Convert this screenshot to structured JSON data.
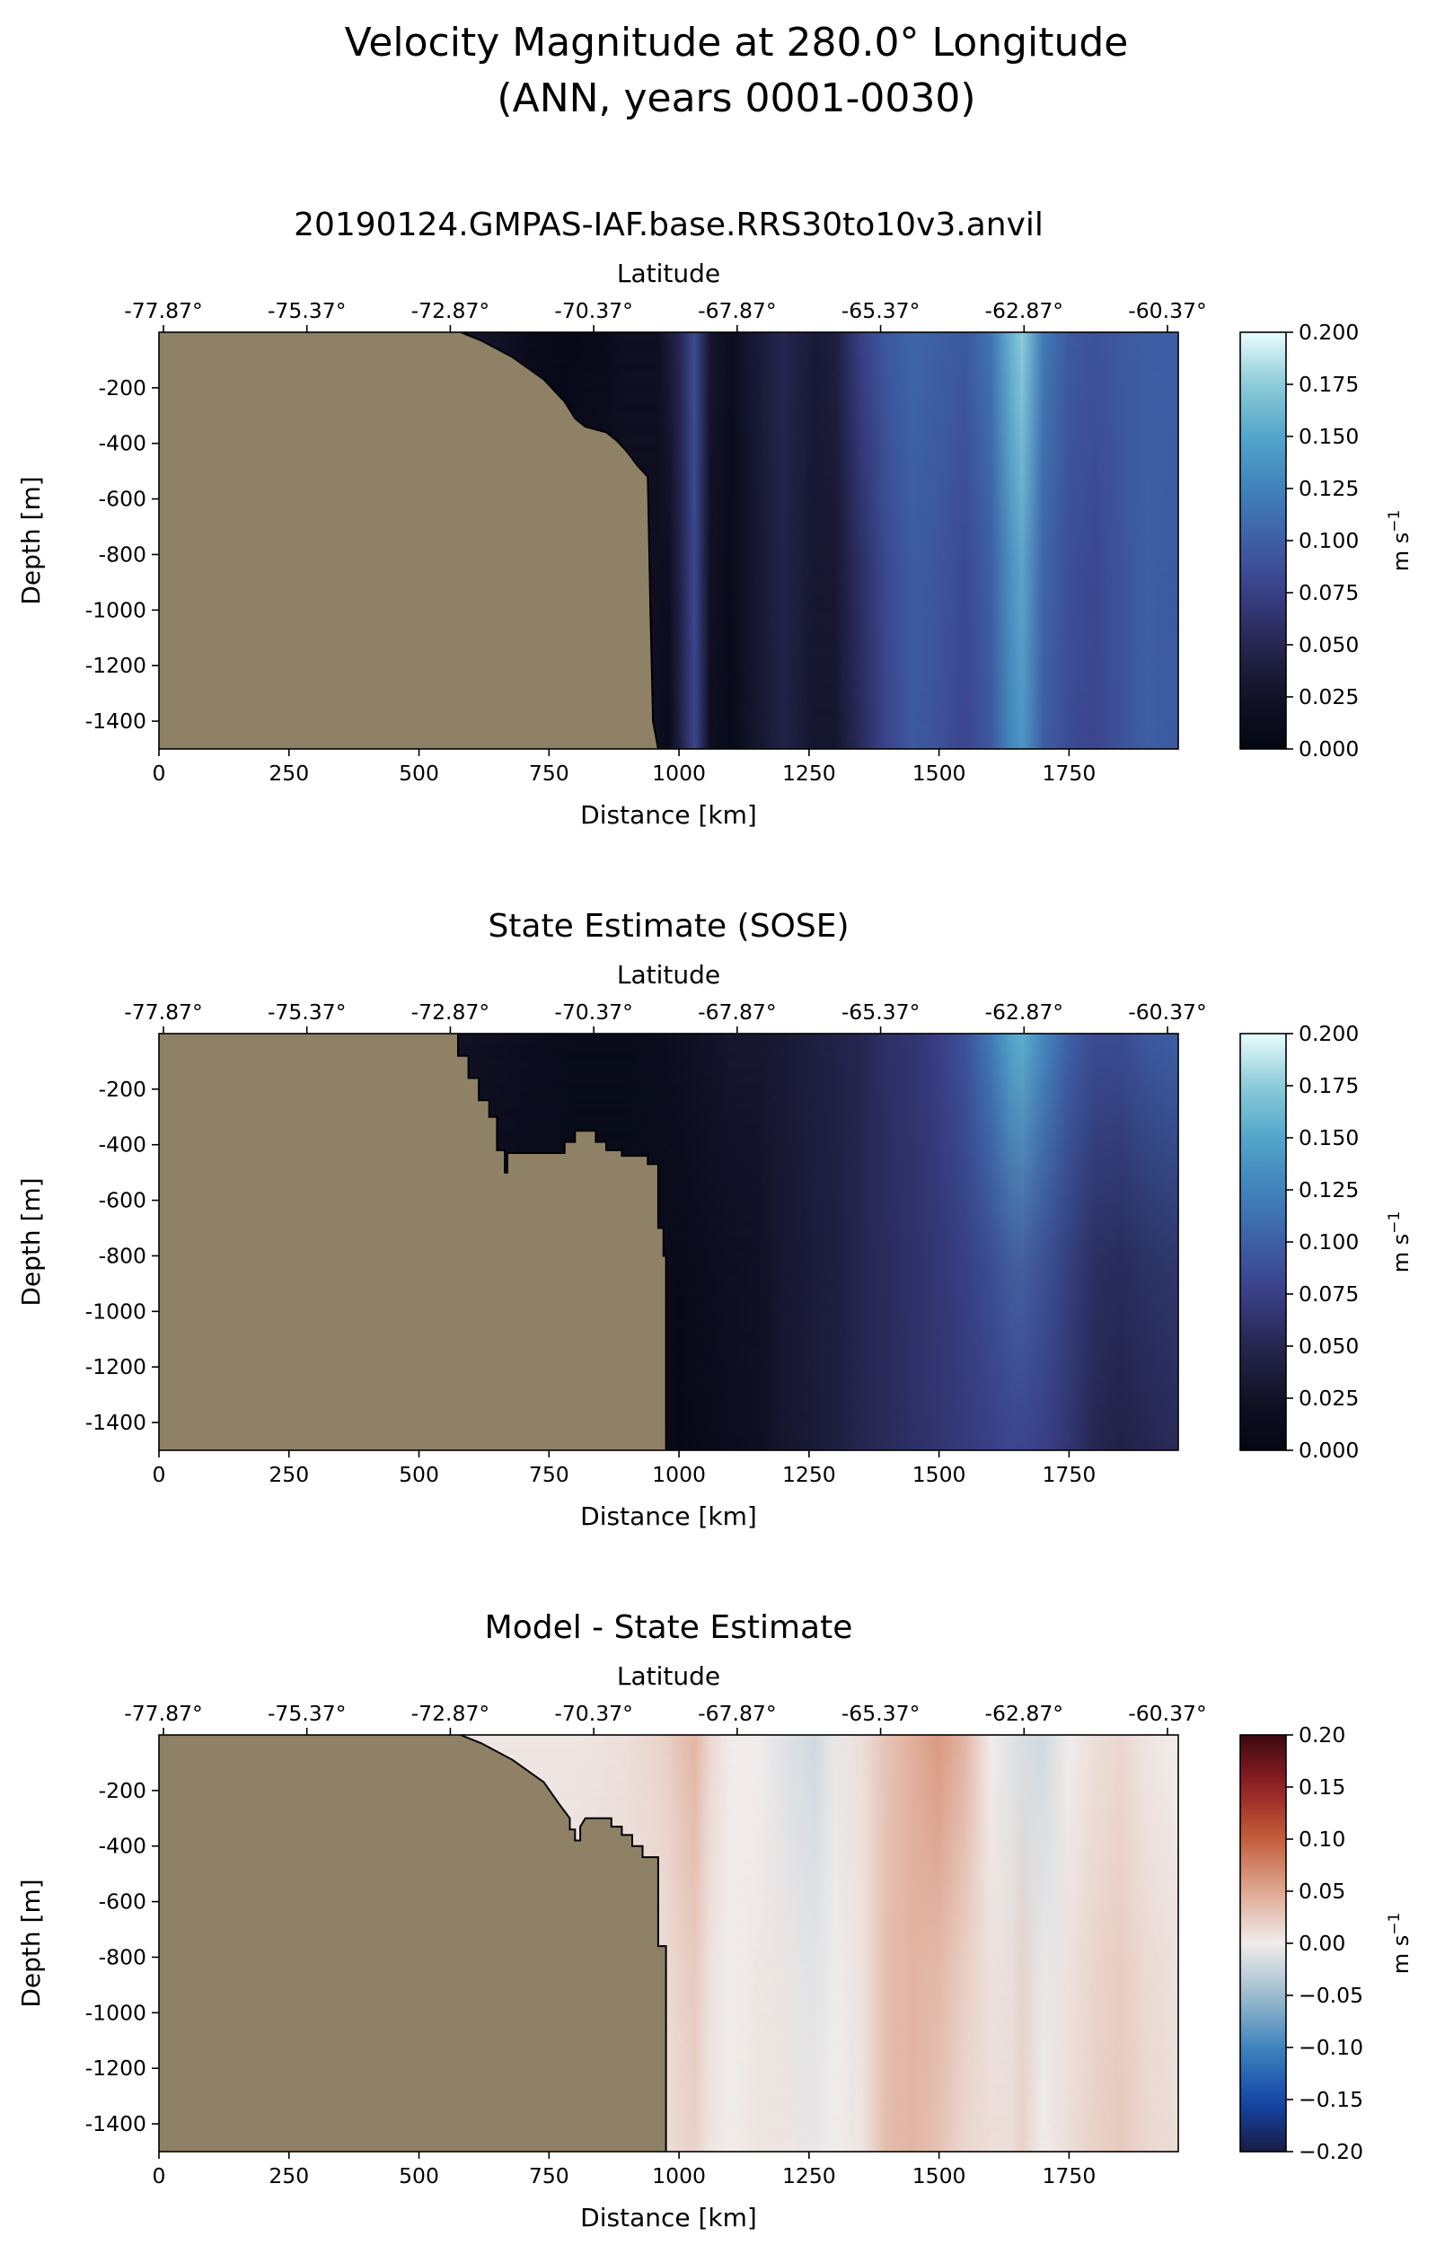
{
  "figure": {
    "title_line1": "Velocity Magnitude at 280.0° Longitude",
    "title_line2": "(ANN, years 0001-0030)"
  },
  "chart_data": [
    {
      "type": "heatmap",
      "title": "20190124.GMPAS-IAF.base.RRS30to10v3.anvil",
      "xlabel": "Distance [km]",
      "ylabel": "Depth [m]",
      "top_xlabel": "Latitude",
      "x_ticks": [
        "0",
        "250",
        "500",
        "750",
        "1000",
        "1250",
        "1500",
        "1750"
      ],
      "top_ticks": [
        "-77.87°",
        "-75.37°",
        "-72.87°",
        "-70.37°",
        "-67.87°",
        "-65.37°",
        "-62.87°",
        "-60.37°"
      ],
      "y_ticks": [
        "-200",
        "-400",
        "-600",
        "-800",
        "-1000",
        "-1200",
        "-1400"
      ],
      "xlim": [
        0,
        1960
      ],
      "ylim": [
        -1500,
        0
      ],
      "colormap": "ice",
      "colorbar": {
        "ticks": [
          "0.000",
          "0.025",
          "0.050",
          "0.075",
          "0.100",
          "0.125",
          "0.150",
          "0.175",
          "0.200"
        ],
        "range": [
          0,
          0.2
        ],
        "label_base": "m s",
        "label_exp": "−1"
      },
      "land_color": "#8f8165",
      "land_boundary": [
        [
          580,
          0
        ],
        [
          620,
          -30
        ],
        [
          680,
          -90
        ],
        [
          740,
          -170
        ],
        [
          780,
          -250
        ],
        [
          800,
          -310
        ],
        [
          820,
          -340
        ],
        [
          860,
          -360
        ],
        [
          880,
          -390
        ],
        [
          900,
          -430
        ],
        [
          920,
          -480
        ],
        [
          940,
          -520
        ],
        [
          945,
          -1000
        ],
        [
          950,
          -1400
        ],
        [
          960,
          -1500
        ]
      ],
      "velocity_profile": [
        [
          960,
          0.02
        ],
        [
          980,
          0.01
        ],
        [
          1000,
          0.04
        ],
        [
          1030,
          0.08
        ],
        [
          1060,
          0.02
        ],
        [
          1100,
          0.01
        ],
        [
          1150,
          0.03
        ],
        [
          1200,
          0.045
        ],
        [
          1260,
          0.03
        ],
        [
          1300,
          0.03
        ],
        [
          1350,
          0.055
        ],
        [
          1400,
          0.08
        ],
        [
          1450,
          0.095
        ],
        [
          1500,
          0.09
        ],
        [
          1550,
          0.08
        ],
        [
          1600,
          0.095
        ],
        [
          1640,
          0.13
        ],
        [
          1660,
          0.14
        ],
        [
          1700,
          0.1
        ],
        [
          1750,
          0.085
        ],
        [
          1800,
          0.08
        ],
        [
          1850,
          0.09
        ],
        [
          1900,
          0.1
        ],
        [
          1960,
          0.095
        ]
      ],
      "surface_profile": [
        [
          580,
          0.03
        ],
        [
          650,
          0.025
        ],
        [
          720,
          0.01
        ],
        [
          780,
          0.005
        ],
        [
          850,
          0.01
        ],
        [
          900,
          0.02
        ],
        [
          960,
          0.02
        ],
        [
          1000,
          0.05
        ],
        [
          1030,
          0.085
        ],
        [
          1060,
          0.03
        ],
        [
          1100,
          0.015
        ],
        [
          1150,
          0.035
        ],
        [
          1200,
          0.05
        ],
        [
          1260,
          0.035
        ],
        [
          1300,
          0.04
        ],
        [
          1350,
          0.075
        ],
        [
          1400,
          0.095
        ],
        [
          1450,
          0.105
        ],
        [
          1500,
          0.1
        ],
        [
          1550,
          0.095
        ],
        [
          1600,
          0.115
        ],
        [
          1640,
          0.16
        ],
        [
          1660,
          0.175
        ],
        [
          1700,
          0.12
        ],
        [
          1750,
          0.095
        ],
        [
          1800,
          0.09
        ],
        [
          1850,
          0.095
        ],
        [
          1900,
          0.1
        ],
        [
          1960,
          0.1
        ]
      ]
    },
    {
      "type": "heatmap",
      "title": "State Estimate (SOSE)",
      "xlabel": "Distance [km]",
      "ylabel": "Depth [m]",
      "top_xlabel": "Latitude",
      "x_ticks": [
        "0",
        "250",
        "500",
        "750",
        "1000",
        "1250",
        "1500",
        "1750"
      ],
      "top_ticks": [
        "-77.87°",
        "-75.37°",
        "-72.87°",
        "-70.37°",
        "-67.87°",
        "-65.37°",
        "-62.87°",
        "-60.37°"
      ],
      "y_ticks": [
        "-200",
        "-400",
        "-600",
        "-800",
        "-1000",
        "-1200",
        "-1400"
      ],
      "xlim": [
        0,
        1960
      ],
      "ylim": [
        -1500,
        0
      ],
      "colormap": "ice",
      "colorbar": {
        "ticks": [
          "0.000",
          "0.025",
          "0.050",
          "0.075",
          "0.100",
          "0.125",
          "0.150",
          "0.175",
          "0.200"
        ],
        "range": [
          0,
          0.2
        ],
        "label_base": "m s",
        "label_exp": "−1"
      },
      "land_color": "#8f8165",
      "land_boundary": [
        [
          575,
          0
        ],
        [
          575,
          -80
        ],
        [
          595,
          -80
        ],
        [
          595,
          -160
        ],
        [
          615,
          -160
        ],
        [
          615,
          -240
        ],
        [
          635,
          -240
        ],
        [
          635,
          -300
        ],
        [
          650,
          -300
        ],
        [
          650,
          -420
        ],
        [
          665,
          -420
        ],
        [
          665,
          -500
        ],
        [
          670,
          -500
        ],
        [
          670,
          -430
        ],
        [
          780,
          -430
        ],
        [
          780,
          -390
        ],
        [
          800,
          -390
        ],
        [
          800,
          -350
        ],
        [
          840,
          -350
        ],
        [
          840,
          -390
        ],
        [
          860,
          -390
        ],
        [
          860,
          -420
        ],
        [
          890,
          -420
        ],
        [
          890,
          -440
        ],
        [
          940,
          -440
        ],
        [
          940,
          -470
        ],
        [
          960,
          -470
        ],
        [
          960,
          -700
        ],
        [
          970,
          -700
        ],
        [
          970,
          -800
        ],
        [
          975,
          -800
        ],
        [
          975,
          -1500
        ]
      ],
      "velocity_profile": [
        [
          975,
          0.01
        ],
        [
          1000,
          0.005
        ],
        [
          1050,
          0.01
        ],
        [
          1100,
          0.015
        ],
        [
          1150,
          0.02
        ],
        [
          1200,
          0.03
        ],
        [
          1250,
          0.035
        ],
        [
          1300,
          0.04
        ],
        [
          1350,
          0.05
        ],
        [
          1400,
          0.055
        ],
        [
          1450,
          0.06
        ],
        [
          1500,
          0.065
        ],
        [
          1550,
          0.07
        ],
        [
          1600,
          0.075
        ],
        [
          1640,
          0.08
        ],
        [
          1660,
          0.08
        ],
        [
          1700,
          0.075
        ],
        [
          1750,
          0.065
        ],
        [
          1800,
          0.05
        ],
        [
          1850,
          0.045
        ],
        [
          1900,
          0.05
        ],
        [
          1960,
          0.055
        ]
      ],
      "surface_profile": [
        [
          575,
          0.025
        ],
        [
          650,
          0.02
        ],
        [
          720,
          0.015
        ],
        [
          800,
          0.01
        ],
        [
          900,
          0.01
        ],
        [
          975,
          0.015
        ],
        [
          1000,
          0.02
        ],
        [
          1050,
          0.025
        ],
        [
          1100,
          0.03
        ],
        [
          1150,
          0.03
        ],
        [
          1200,
          0.035
        ],
        [
          1250,
          0.04
        ],
        [
          1300,
          0.045
        ],
        [
          1350,
          0.05
        ],
        [
          1400,
          0.06
        ],
        [
          1450,
          0.065
        ],
        [
          1500,
          0.075
        ],
        [
          1550,
          0.09
        ],
        [
          1600,
          0.12
        ],
        [
          1640,
          0.15
        ],
        [
          1660,
          0.155
        ],
        [
          1700,
          0.13
        ],
        [
          1750,
          0.1
        ],
        [
          1800,
          0.085
        ],
        [
          1850,
          0.085
        ],
        [
          1900,
          0.095
        ],
        [
          1960,
          0.1
        ]
      ]
    },
    {
      "type": "heatmap",
      "title": "Model - State Estimate",
      "xlabel": "Distance [km]",
      "ylabel": "Depth [m]",
      "top_xlabel": "Latitude",
      "x_ticks": [
        "0",
        "250",
        "500",
        "750",
        "1000",
        "1250",
        "1500",
        "1750"
      ],
      "top_ticks": [
        "-77.87°",
        "-75.37°",
        "-72.87°",
        "-70.37°",
        "-67.87°",
        "-65.37°",
        "-62.87°",
        "-60.37°"
      ],
      "y_ticks": [
        "-200",
        "-400",
        "-600",
        "-800",
        "-1000",
        "-1200",
        "-1400"
      ],
      "xlim": [
        0,
        1960
      ],
      "ylim": [
        -1500,
        0
      ],
      "colormap": "balance",
      "colorbar": {
        "ticks": [
          "0.20",
          "0.15",
          "0.10",
          "0.05",
          "0.00",
          "−0.05",
          "−0.10",
          "−0.15",
          "−0.20"
        ],
        "range": [
          -0.2,
          0.2
        ],
        "label_base": "m s",
        "label_exp": "−1"
      },
      "land_color": "#8f8165",
      "land_boundary": [
        [
          580,
          0
        ],
        [
          620,
          -30
        ],
        [
          680,
          -90
        ],
        [
          740,
          -170
        ],
        [
          770,
          -250
        ],
        [
          790,
          -300
        ],
        [
          790,
          -340
        ],
        [
          800,
          -340
        ],
        [
          800,
          -380
        ],
        [
          810,
          -380
        ],
        [
          810,
          -330
        ],
        [
          820,
          -300
        ],
        [
          870,
          -300
        ],
        [
          870,
          -330
        ],
        [
          890,
          -330
        ],
        [
          890,
          -360
        ],
        [
          910,
          -360
        ],
        [
          910,
          -400
        ],
        [
          930,
          -400
        ],
        [
          930,
          -440
        ],
        [
          960,
          -440
        ],
        [
          960,
          -760
        ],
        [
          975,
          -760
        ],
        [
          975,
          -1500
        ]
      ],
      "velocity_profile": [
        [
          975,
          0.01
        ],
        [
          1000,
          0.015
        ],
        [
          1030,
          0.02
        ],
        [
          1060,
          0.005
        ],
        [
          1100,
          0.0
        ],
        [
          1150,
          0.005
        ],
        [
          1200,
          0.005
        ],
        [
          1260,
          -0.005
        ],
        [
          1300,
          0.0
        ],
        [
          1350,
          0.005
        ],
        [
          1400,
          0.035
        ],
        [
          1450,
          0.04
        ],
        [
          1500,
          0.03
        ],
        [
          1550,
          0.015
        ],
        [
          1600,
          0.01
        ],
        [
          1640,
          0.01
        ],
        [
          1660,
          0.02
        ],
        [
          1700,
          0.0
        ],
        [
          1750,
          0.01
        ],
        [
          1800,
          0.02
        ],
        [
          1850,
          0.025
        ],
        [
          1900,
          0.015
        ],
        [
          1960,
          0.01
        ]
      ],
      "surface_profile": [
        [
          580,
          0.005
        ],
        [
          700,
          0.005
        ],
        [
          800,
          0.005
        ],
        [
          900,
          0.01
        ],
        [
          975,
          0.02
        ],
        [
          1000,
          0.03
        ],
        [
          1030,
          0.04
        ],
        [
          1060,
          0.015
        ],
        [
          1100,
          0.0
        ],
        [
          1150,
          0.0
        ],
        [
          1200,
          -0.01
        ],
        [
          1260,
          -0.02
        ],
        [
          1300,
          -0.005
        ],
        [
          1350,
          0.01
        ],
        [
          1400,
          0.03
        ],
        [
          1450,
          0.045
        ],
        [
          1500,
          0.06
        ],
        [
          1550,
          0.04
        ],
        [
          1600,
          0.0
        ],
        [
          1640,
          -0.01
        ],
        [
          1660,
          -0.015
        ],
        [
          1700,
          -0.02
        ],
        [
          1750,
          0.0
        ],
        [
          1800,
          0.01
        ],
        [
          1850,
          0.015
        ],
        [
          1900,
          0.005
        ],
        [
          1960,
          0.0
        ]
      ]
    }
  ]
}
